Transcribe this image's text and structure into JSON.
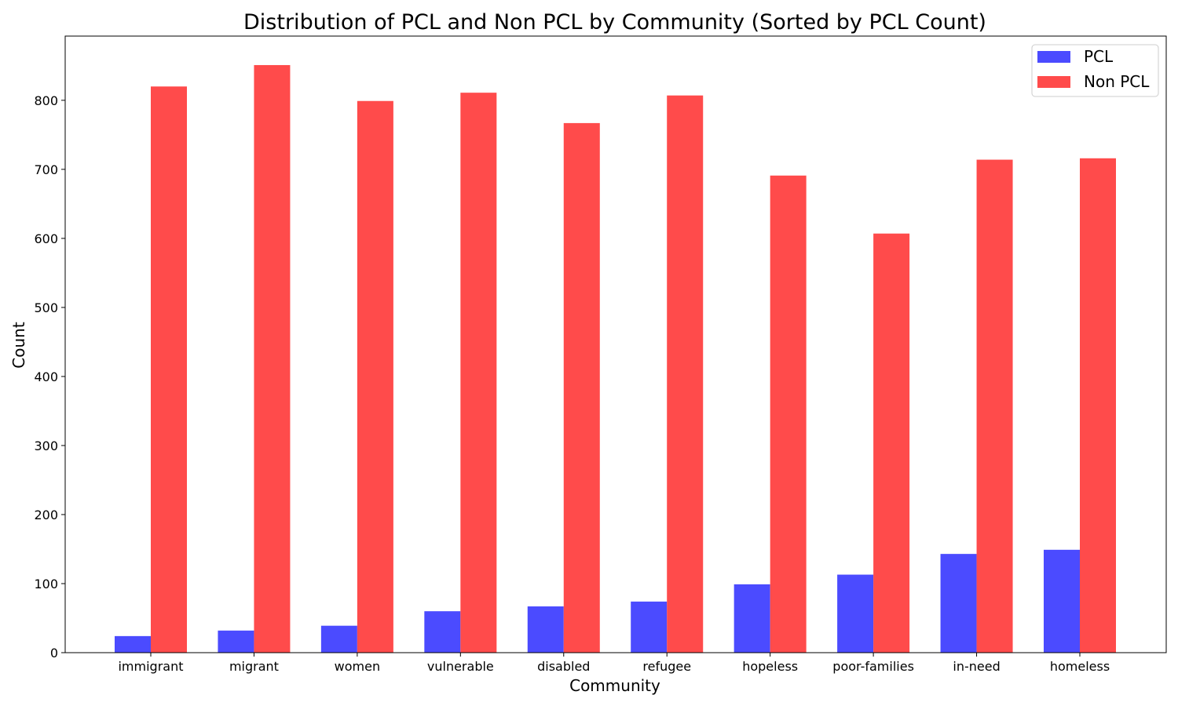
{
  "chart_data": {
    "type": "bar",
    "title": "Distribution of PCL and Non PCL by Community (Sorted by PCL Count)",
    "xlabel": "Community",
    "ylabel": "Count",
    "ylim": [
      0,
      893
    ],
    "yticks": [
      0,
      100,
      200,
      300,
      400,
      500,
      600,
      700,
      800
    ],
    "categories": [
      "immigrant",
      "migrant",
      "women",
      "vulnerable",
      "disabled",
      "refugee",
      "hopeless",
      "poor-families",
      "in-need",
      "homeless"
    ],
    "series": [
      {
        "name": "PCL",
        "color": "#4b4bff",
        "values": [
          24,
          32,
          39,
          60,
          67,
          74,
          99,
          113,
          143,
          149
        ]
      },
      {
        "name": "Non PCL",
        "color": "#ff4b4b",
        "values": [
          820,
          851,
          799,
          811,
          767,
          807,
          691,
          607,
          714,
          716
        ]
      }
    ],
    "legend_position": "top-right",
    "grid": false
  }
}
